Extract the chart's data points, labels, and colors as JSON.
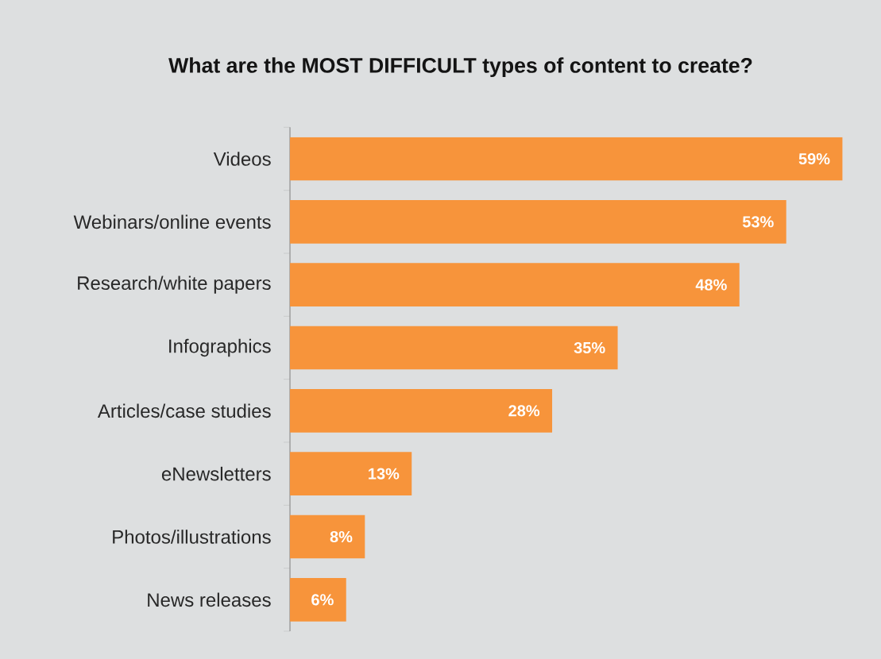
{
  "chart_data": {
    "type": "bar",
    "orientation": "horizontal",
    "title": "What are the MOST DIFFICULT types of content to create?",
    "categories": [
      "Videos",
      "Webinars/online events",
      "Research/white papers",
      "Infographics",
      "Articles/case studies",
      "eNewsletters",
      "Photos/illustrations",
      "News releases"
    ],
    "values": [
      59,
      53,
      48,
      35,
      28,
      13,
      8,
      6
    ],
    "value_labels": [
      "59%",
      "53%",
      "48%",
      "35%",
      "28%",
      "13%",
      "8%",
      "6%"
    ],
    "color": "#f7943b"
  }
}
